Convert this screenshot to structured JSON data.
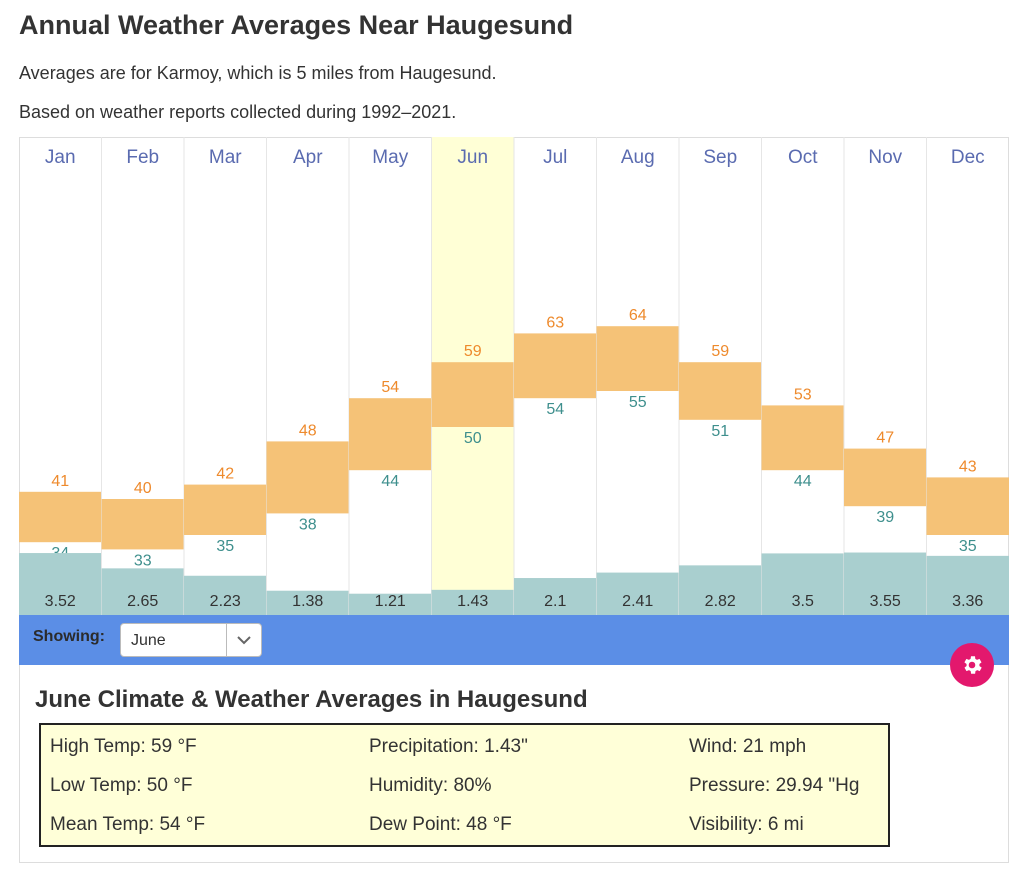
{
  "page": {
    "title": "Annual Weather Averages Near Haugesund",
    "subtitle1": "Averages are for Karmoy, which is 5 miles from Haugesund.",
    "subtitle2": "Based on weather reports collected during 1992–2021."
  },
  "chart_data": {
    "type": "bar",
    "categories": [
      "Jan",
      "Feb",
      "Mar",
      "Apr",
      "May",
      "Jun",
      "Jul",
      "Aug",
      "Sep",
      "Oct",
      "Nov",
      "Dec"
    ],
    "series": [
      {
        "name": "High Temp",
        "unit": "°F",
        "values": [
          41,
          40,
          42,
          48,
          54,
          59,
          63,
          64,
          59,
          53,
          47,
          43
        ]
      },
      {
        "name": "Low Temp",
        "unit": "°F",
        "values": [
          34,
          33,
          35,
          38,
          44,
          50,
          54,
          55,
          51,
          44,
          39,
          35
        ]
      },
      {
        "name": "Precipitation",
        "unit": "in",
        "values": [
          3.52,
          2.65,
          2.23,
          1.38,
          1.21,
          1.43,
          2.1,
          2.41,
          2.82,
          3.5,
          3.55,
          3.36
        ]
      }
    ],
    "selected_month": "Jun",
    "colors": {
      "temp_bar": "#f5c277",
      "high_label": "#ee8a2c",
      "low_label": "#3e8f8d",
      "precip_bar": "#a9cfcf",
      "month_label": "#5a6bb0",
      "highlight": "#ffffd6",
      "grid": "#e6e6e6"
    }
  },
  "controls": {
    "showing_label": "Showing:",
    "selected": "June",
    "options_visible": [
      "June"
    ]
  },
  "detail": {
    "title": "June Climate & Weather Averages in Haugesund",
    "rows": [
      [
        "High Temp: 59 °F",
        "Precipitation: 1.43\"",
        "Wind: 21 mph"
      ],
      [
        "Low Temp: 50 °F",
        "Humidity: 80%",
        "Pressure: 29.94 \"Hg"
      ],
      [
        "Mean Temp: 54 °F",
        "Dew Point: 48 °F",
        "Visibility: 6 mi"
      ]
    ]
  },
  "icons": {
    "dropdown": "chevron-down-icon",
    "settings": "gear-icon"
  }
}
